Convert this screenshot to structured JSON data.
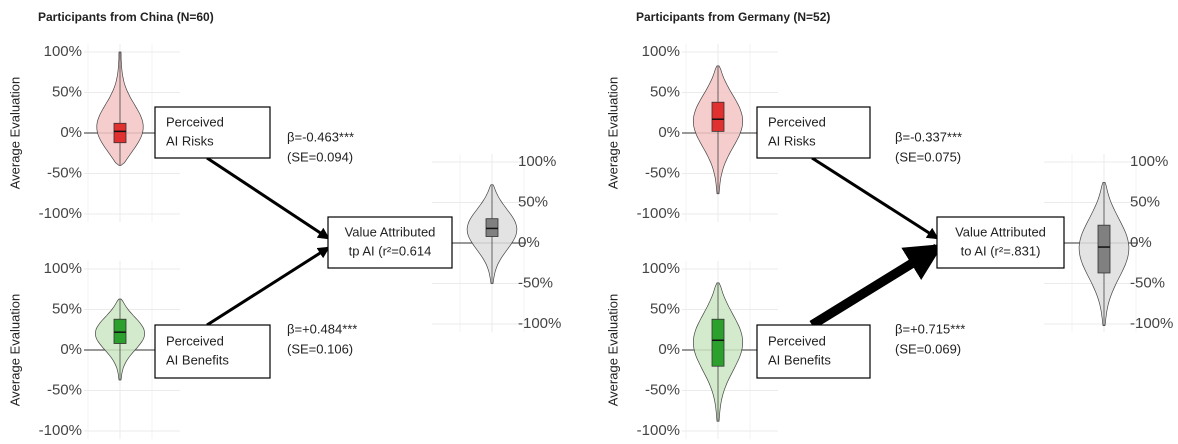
{
  "panels": [
    {
      "title": "Participants from China (N=60)",
      "plots": [
        {
          "ylabel": "Average Evaluation",
          "ylim": [
            -110,
            110
          ],
          "yticks": [
            {
              "value": 100,
              "label": "100%"
            },
            {
              "value": 50,
              "label": "50%"
            },
            {
              "value": 0,
              "label": "0%"
            },
            {
              "value": -50,
              "label": "-50%"
            },
            {
              "value": -100,
              "label": "-100%"
            }
          ],
          "fill": "#f5c4c4",
          "box_color": "#e03030",
          "violin": {
            "min": -40,
            "max": 100
          },
          "box": {
            "q1": -12,
            "median": 2,
            "q3": 12
          }
        },
        {
          "ylabel": "Average Evaluation",
          "ylim": [
            -110,
            110
          ],
          "yticks": [
            {
              "value": 100,
              "label": "100%"
            },
            {
              "value": 50,
              "label": "50%"
            },
            {
              "value": 0,
              "label": "0%"
            },
            {
              "value": -50,
              "label": "-50%"
            },
            {
              "value": -100,
              "label": "-100%"
            }
          ],
          "fill": "#cbe7c3",
          "box_color": "#2ca02c",
          "violin": {
            "min": -37,
            "max": 63
          },
          "box": {
            "q1": 8,
            "median": 22,
            "q3": 38
          }
        },
        {
          "ylim": [
            -110,
            110
          ],
          "yticks": [
            {
              "value": 100,
              "label": "100%"
            },
            {
              "value": 50,
              "label": "50%"
            },
            {
              "value": 0,
              "label": "0%"
            },
            {
              "value": -50,
              "label": "-50%"
            },
            {
              "value": -100,
              "label": "-100%"
            }
          ],
          "fill": "#dedede",
          "box_color": "#808080",
          "violin": {
            "min": -50,
            "max": 72
          },
          "box": {
            "q1": 8,
            "median": 18,
            "q3": 30
          }
        }
      ],
      "nodes": [
        [
          "Perceived",
          "AI Risks"
        ],
        [
          "Perceived",
          "AI Benefits"
        ],
        [
          "Value Attributed",
          "tp AI (r²=0.614"
        ]
      ],
      "edges": [
        {
          "coef": -0.463,
          "label": "β=-0.463***",
          "se": "(SE=0.094)"
        },
        {
          "coef": 0.484,
          "label": "β=+0.484***",
          "se": "(SE=0.106)"
        }
      ]
    },
    {
      "title": "Participants from Germany (N=52)",
      "plots": [
        {
          "ylabel": "Average Evaluation",
          "ylim": [
            -110,
            110
          ],
          "yticks": [
            {
              "value": 100,
              "label": "100%"
            },
            {
              "value": 50,
              "label": "50%"
            },
            {
              "value": 0,
              "label": "0%"
            },
            {
              "value": -50,
              "label": "-50%"
            },
            {
              "value": -100,
              "label": "-100%"
            }
          ],
          "fill": "#f5c4c4",
          "box_color": "#e03030",
          "violin": {
            "min": -75,
            "max": 83
          },
          "box": {
            "q1": 2,
            "median": 17,
            "q3": 38
          }
        },
        {
          "ylabel": "Average Evaluation",
          "ylim": [
            -110,
            110
          ],
          "yticks": [
            {
              "value": 100,
              "label": "100%"
            },
            {
              "value": 50,
              "label": "50%"
            },
            {
              "value": 0,
              "label": "0%"
            },
            {
              "value": -50,
              "label": "-50%"
            },
            {
              "value": -100,
              "label": "-100%"
            }
          ],
          "fill": "#cbe7c3",
          "box_color": "#2ca02c",
          "violin": {
            "min": -88,
            "max": 83
          },
          "box": {
            "q1": -20,
            "median": 12,
            "q3": 38
          }
        },
        {
          "ylim": [
            -110,
            110
          ],
          "yticks": [
            {
              "value": 100,
              "label": "100%"
            },
            {
              "value": 50,
              "label": "50%"
            },
            {
              "value": 0,
              "label": "0%"
            },
            {
              "value": -50,
              "label": "-50%"
            },
            {
              "value": -100,
              "label": "-100%"
            }
          ],
          "fill": "#dedede",
          "box_color": "#808080",
          "violin": {
            "min": -102,
            "max": 75
          },
          "box": {
            "q1": -37,
            "median": -5,
            "q3": 22
          }
        }
      ],
      "nodes": [
        [
          "Perceived",
          "AI Risks"
        ],
        [
          "Perceived",
          "AI Benefits"
        ],
        [
          "Value Attributed",
          "to AI (r²=.831)"
        ]
      ],
      "edges": [
        {
          "coef": -0.337,
          "label": "β=-0.337***",
          "se": "(SE=0.075)"
        },
        {
          "coef": 0.715,
          "label": "β=+0.715***",
          "se": "(SE=0.069)"
        }
      ]
    }
  ]
}
